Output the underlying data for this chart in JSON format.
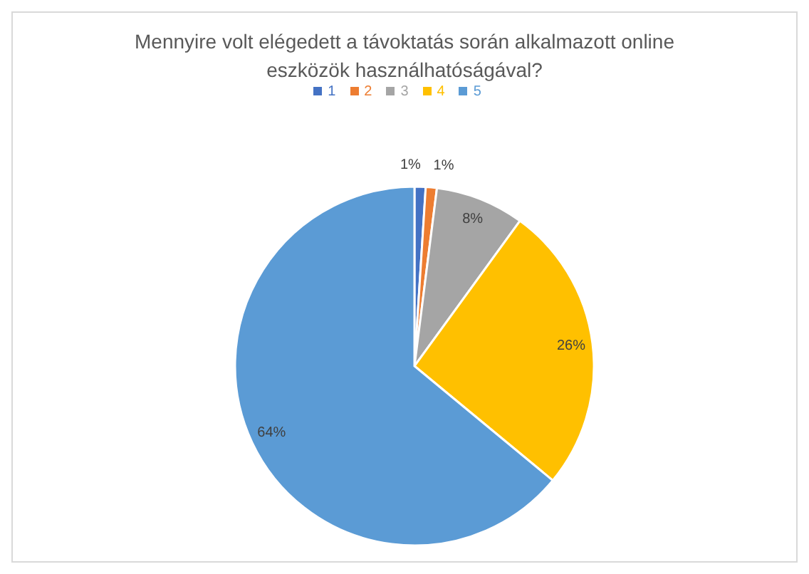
{
  "chart_data": {
    "type": "pie",
    "title": "Mennyire volt elégedett a távoktatás során alkalmazott online eszközök használhatóságával?",
    "categories": [
      "1",
      "2",
      "3",
      "4",
      "5"
    ],
    "values": [
      1,
      1,
      8,
      26,
      64
    ],
    "value_labels": [
      "1%",
      "1%",
      "8%",
      "26%",
      "64%"
    ],
    "colors": [
      "#4472c4",
      "#ed7d31",
      "#a5a5a5",
      "#ffc000",
      "#5b9bd5"
    ],
    "legend": "top"
  }
}
